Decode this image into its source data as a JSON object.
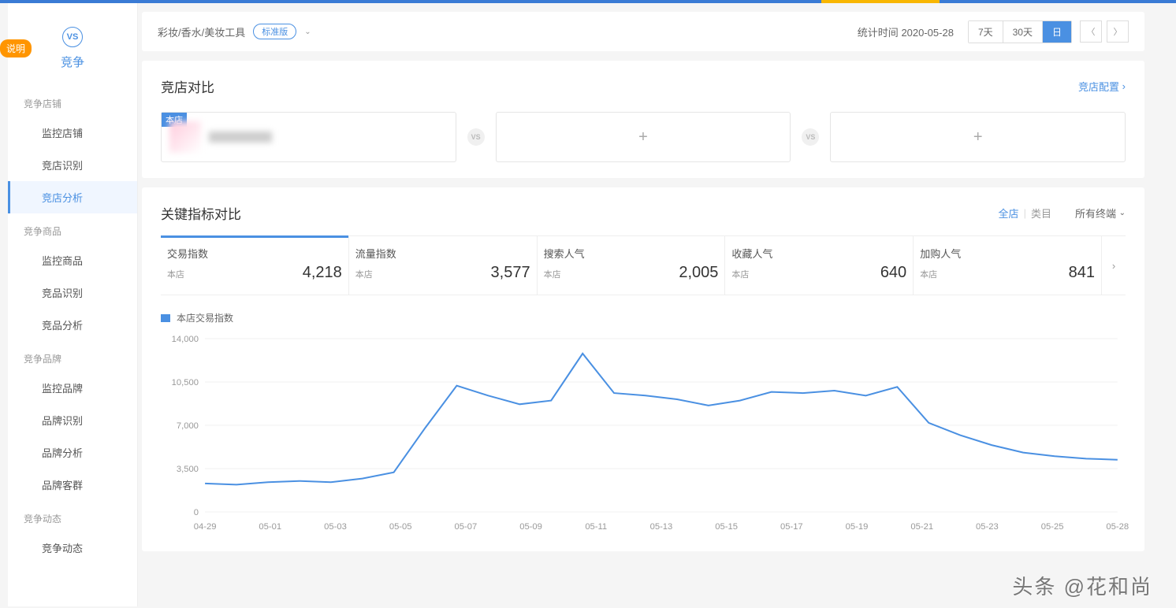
{
  "badge_float": "说明",
  "sidebar": {
    "vs_label": "VS",
    "title": "竞争",
    "sections": [
      {
        "header": "竞争店铺",
        "items": [
          "监控店铺",
          "竞店识别",
          "竞店分析"
        ],
        "active_index": 2
      },
      {
        "header": "竞争商品",
        "items": [
          "监控商品",
          "竞品识别",
          "竞品分析"
        ]
      },
      {
        "header": "竞争品牌",
        "items": [
          "监控品牌",
          "品牌识别",
          "品牌分析",
          "品牌客群"
        ]
      },
      {
        "header": "竞争动态",
        "items": [
          "竞争动态"
        ]
      }
    ]
  },
  "topfilter": {
    "breadcrumb": "彩妆/香水/美妆工具",
    "version": "标准版",
    "stat_time_label": "统计时间",
    "stat_time_value": "2020-05-28",
    "periods": [
      "7天",
      "30天",
      "日"
    ],
    "active_period": 2
  },
  "compare_card": {
    "title": "竞店对比",
    "config_label": "竞店配置",
    "own_label": "本店"
  },
  "metrics": {
    "title": "关键指标对比",
    "scope": {
      "tabs": [
        "全店",
        "类目"
      ],
      "active": 0
    },
    "terminal": "所有终端",
    "tabs": [
      {
        "name": "交易指数",
        "sub": "本店",
        "value": "4,218"
      },
      {
        "name": "流量指数",
        "sub": "本店",
        "value": "3,577"
      },
      {
        "name": "搜索人气",
        "sub": "本店",
        "value": "2,005"
      },
      {
        "name": "收藏人气",
        "sub": "本店",
        "value": "640"
      },
      {
        "name": "加购人气",
        "sub": "本店",
        "value": "841"
      }
    ],
    "active_tab": 0
  },
  "chart": {
    "legend": "本店交易指数",
    "y_ticks": [
      0,
      3500,
      7000,
      10500,
      14000
    ],
    "y_labels": [
      "0",
      "3,500",
      "7,000",
      "10,500",
      "14,000"
    ],
    "ylim": [
      0,
      14000
    ],
    "x_categories": [
      "04-29",
      "05-01",
      "05-03",
      "05-05",
      "05-07",
      "05-09",
      "05-11",
      "05-13",
      "05-15",
      "05-17",
      "05-19",
      "05-21",
      "05-23",
      "05-25",
      "05-28"
    ],
    "series": [
      {
        "x": "04-29",
        "y": 2300
      },
      {
        "x": "04-30",
        "y": 2200
      },
      {
        "x": "05-01",
        "y": 2400
      },
      {
        "x": "05-02",
        "y": 2500
      },
      {
        "x": "05-03",
        "y": 2400
      },
      {
        "x": "05-04",
        "y": 2700
      },
      {
        "x": "05-05",
        "y": 3200
      },
      {
        "x": "05-06",
        "y": 6800
      },
      {
        "x": "05-07",
        "y": 10200
      },
      {
        "x": "05-08",
        "y": 9400
      },
      {
        "x": "05-09",
        "y": 8700
      },
      {
        "x": "05-10",
        "y": 9000
      },
      {
        "x": "05-11",
        "y": 12800
      },
      {
        "x": "05-12",
        "y": 9600
      },
      {
        "x": "05-13",
        "y": 9400
      },
      {
        "x": "05-14",
        "y": 9100
      },
      {
        "x": "05-15",
        "y": 8600
      },
      {
        "x": "05-16",
        "y": 9000
      },
      {
        "x": "05-17",
        "y": 9700
      },
      {
        "x": "05-18",
        "y": 9600
      },
      {
        "x": "05-19",
        "y": 9800
      },
      {
        "x": "05-20",
        "y": 9400
      },
      {
        "x": "05-21",
        "y": 10100
      },
      {
        "x": "05-22",
        "y": 7200
      },
      {
        "x": "05-23",
        "y": 6200
      },
      {
        "x": "05-24",
        "y": 5400
      },
      {
        "x": "05-25",
        "y": 4800
      },
      {
        "x": "05-26",
        "y": 4500
      },
      {
        "x": "05-27",
        "y": 4300
      },
      {
        "x": "05-28",
        "y": 4218
      }
    ],
    "line_color": "#4a90e2",
    "line_width": 2,
    "grid_color": "#f0f0f0",
    "background": "#ffffff",
    "label_fontsize": 11,
    "label_color": "#999999"
  },
  "watermark": "头条 @花和尚"
}
